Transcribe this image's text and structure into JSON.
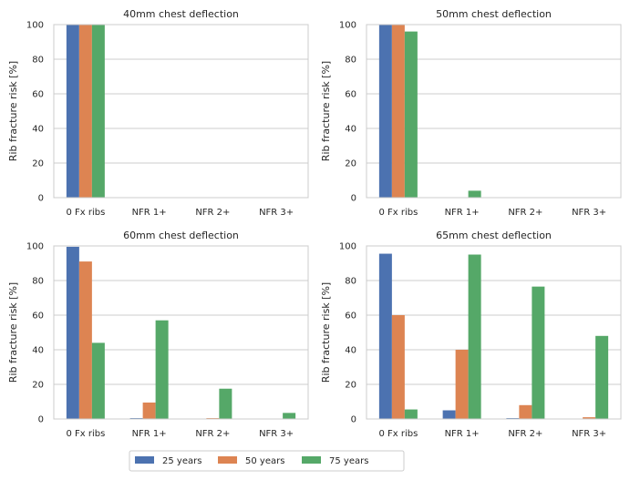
{
  "chart_data": [
    {
      "type": "bar",
      "title": "40mm chest deflection",
      "ylabel": "Rib fracture risk [%]",
      "xlabel": "",
      "categories": [
        "0 Fx ribs",
        "NFR 1+",
        "NFR 2+",
        "NFR 3+"
      ],
      "ylim": [
        0,
        100
      ],
      "yticks": [
        0,
        20,
        40,
        60,
        80,
        100
      ],
      "grid": true,
      "series": [
        {
          "name": "25 years",
          "values": [
            100,
            0,
            0,
            0
          ]
        },
        {
          "name": "50 years",
          "values": [
            100,
            0,
            0,
            0
          ]
        },
        {
          "name": "75 years",
          "values": [
            99.8,
            0.2,
            0,
            0
          ]
        }
      ]
    },
    {
      "type": "bar",
      "title": "50mm chest deflection",
      "ylabel": "Rib fracture risk [%]",
      "xlabel": "",
      "categories": [
        "0 Fx ribs",
        "NFR 1+",
        "NFR 2+",
        "NFR 3+"
      ],
      "ylim": [
        0,
        100
      ],
      "yticks": [
        0,
        20,
        40,
        60,
        80,
        100
      ],
      "grid": true,
      "series": [
        {
          "name": "25 years",
          "values": [
            100,
            0,
            0,
            0
          ]
        },
        {
          "name": "50 years",
          "values": [
            99.9,
            0.1,
            0,
            0
          ]
        },
        {
          "name": "75 years",
          "values": [
            96,
            4,
            0.1,
            0
          ]
        }
      ]
    },
    {
      "type": "bar",
      "title": "60mm chest deflection",
      "ylabel": "Rib fracture risk [%]",
      "xlabel": "",
      "categories": [
        "0 Fx ribs",
        "NFR 1+",
        "NFR 2+",
        "NFR 3+"
      ],
      "ylim": [
        0,
        100
      ],
      "yticks": [
        0,
        20,
        40,
        60,
        80,
        100
      ],
      "grid": true,
      "series": [
        {
          "name": "25 years",
          "values": [
            99.5,
            0.5,
            0,
            0
          ]
        },
        {
          "name": "50 years",
          "values": [
            91,
            9.5,
            0.5,
            0
          ]
        },
        {
          "name": "75 years",
          "values": [
            44,
            57,
            17.5,
            3.5
          ]
        }
      ]
    },
    {
      "type": "bar",
      "title": "65mm chest deflection",
      "ylabel": "Rib fracture risk [%]",
      "xlabel": "",
      "categories": [
        "0 Fx ribs",
        "NFR 1+",
        "NFR 2+",
        "NFR 3+"
      ],
      "ylim": [
        0,
        100
      ],
      "yticks": [
        0,
        20,
        40,
        60,
        80,
        100
      ],
      "grid": true,
      "series": [
        {
          "name": "25 years",
          "values": [
            95.5,
            5,
            0.5,
            0
          ]
        },
        {
          "name": "50 years",
          "values": [
            60,
            40,
            8,
            1
          ]
        },
        {
          "name": "75 years",
          "values": [
            5.5,
            95,
            76.5,
            48
          ]
        }
      ]
    }
  ],
  "legend": {
    "placement": "bottom-center",
    "items": [
      "25 years",
      "50 years",
      "75 years"
    ]
  },
  "colors": {
    "25 years": "#4c72b0",
    "50 years": "#dd8452",
    "75 years": "#55a868",
    "grid": "#cccccc",
    "frame": "#cccccc",
    "text": "#262626"
  }
}
